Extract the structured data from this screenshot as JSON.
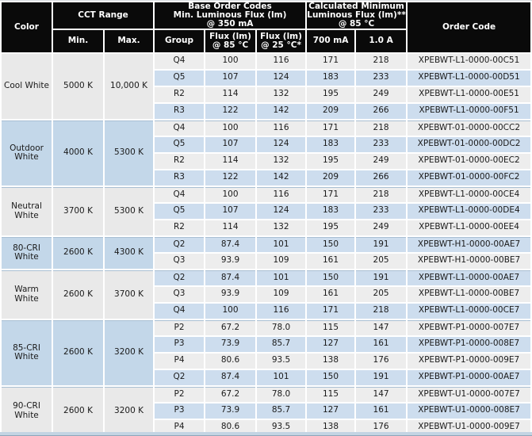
{
  "theme": {
    "header_bg": "#0a0a0a",
    "header_text": "#ffffff",
    "row_light": "#ededed",
    "row_blue": "#cdddee",
    "section_gray": "#e9e9e9",
    "section_blue": "#c3d7e9",
    "divider": "#a9bfd3",
    "body_text": "#1a1a1a",
    "bottom_strip": "#c3d4e3"
  },
  "table": {
    "header": {
      "color": "Color",
      "cct_range": "CCT Range",
      "base_order_codes": "Base Order Codes\nMin. Luminous Flux (lm)\n@ 350 mA",
      "calculated_min": "Calculated Minimum\nLuminous Flux (lm)**\n@ 85 °C",
      "order_code": "Order Code",
      "min": "Min.",
      "max": "Max.",
      "group": "Group",
      "flux_85": "Flux (lm)\n@ 85 °C",
      "flux_25": "Flux (lm)\n@ 25 °C*",
      "ma_700": "700 mA",
      "a_1_0": "1.0 A"
    },
    "sections": [
      {
        "color": "Cool White",
        "cct_min": "5000 K",
        "cct_max": "10,000 K",
        "tint": "gray",
        "rows": [
          {
            "group": "Q4",
            "flux85": "100",
            "flux25": "116",
            "ma700": "171",
            "a10": "218",
            "code": "XPEBWT-L1-0000-00C51"
          },
          {
            "group": "Q5",
            "flux85": "107",
            "flux25": "124",
            "ma700": "183",
            "a10": "233",
            "code": "XPEBWT-L1-0000-00D51"
          },
          {
            "group": "R2",
            "flux85": "114",
            "flux25": "132",
            "ma700": "195",
            "a10": "249",
            "code": "XPEBWT-L1-0000-00E51"
          },
          {
            "group": "R3",
            "flux85": "122",
            "flux25": "142",
            "ma700": "209",
            "a10": "266",
            "code": "XPEBWT-L1-0000-00F51"
          }
        ]
      },
      {
        "color": "Outdoor White",
        "cct_min": "4000 K",
        "cct_max": "5300 K",
        "tint": "blue",
        "rows": [
          {
            "group": "Q4",
            "flux85": "100",
            "flux25": "116",
            "ma700": "171",
            "a10": "218",
            "code": "XPEBWT-01-0000-00CC2"
          },
          {
            "group": "Q5",
            "flux85": "107",
            "flux25": "124",
            "ma700": "183",
            "a10": "233",
            "code": "XPEBWT-01-0000-00DC2"
          },
          {
            "group": "R2",
            "flux85": "114",
            "flux25": "132",
            "ma700": "195",
            "a10": "249",
            "code": "XPEBWT-01-0000-00EC2"
          },
          {
            "group": "R3",
            "flux85": "122",
            "flux25": "142",
            "ma700": "209",
            "a10": "266",
            "code": "XPEBWT-01-0000-00FC2"
          }
        ]
      },
      {
        "color": "Neutral White",
        "cct_min": "3700 K",
        "cct_max": "5300 K",
        "tint": "gray",
        "rows": [
          {
            "group": "Q4",
            "flux85": "100",
            "flux25": "116",
            "ma700": "171",
            "a10": "218",
            "code": "XPEBWT-L1-0000-00CE4"
          },
          {
            "group": "Q5",
            "flux85": "107",
            "flux25": "124",
            "ma700": "183",
            "a10": "233",
            "code": "XPEBWT-L1-0000-00DE4"
          },
          {
            "group": "R2",
            "flux85": "114",
            "flux25": "132",
            "ma700": "195",
            "a10": "249",
            "code": "XPEBWT-L1-0000-00EE4"
          }
        ]
      },
      {
        "color": "80-CRI White",
        "cct_min": "2600 K",
        "cct_max": "4300 K",
        "tint": "blue",
        "rows": [
          {
            "group": "Q2",
            "flux85": "87.4",
            "flux25": "101",
            "ma700": "150",
            "a10": "191",
            "code": "XPEBWT-H1-0000-00AE7"
          },
          {
            "group": "Q3",
            "flux85": "93.9",
            "flux25": "109",
            "ma700": "161",
            "a10": "205",
            "code": "XPEBWT-H1-0000-00BE7"
          }
        ]
      },
      {
        "color": "Warm White",
        "cct_min": "2600 K",
        "cct_max": "3700 K",
        "tint": "gray",
        "rows": [
          {
            "group": "Q2",
            "flux85": "87.4",
            "flux25": "101",
            "ma700": "150",
            "a10": "191",
            "code": "XPEBWT-L1-0000-00AE7"
          },
          {
            "group": "Q3",
            "flux85": "93.9",
            "flux25": "109",
            "ma700": "161",
            "a10": "205",
            "code": "XPEBWT-L1-0000-00BE7"
          },
          {
            "group": "Q4",
            "flux85": "100",
            "flux25": "116",
            "ma700": "171",
            "a10": "218",
            "code": "XPEBWT-L1-0000-00CE7"
          }
        ]
      },
      {
        "color": "85-CRI White",
        "cct_min": "2600 K",
        "cct_max": "3200 K",
        "tint": "blue",
        "rows": [
          {
            "group": "P2",
            "flux85": "67.2",
            "flux25": "78.0",
            "ma700": "115",
            "a10": "147",
            "code": "XPEBWT-P1-0000-007E7"
          },
          {
            "group": "P3",
            "flux85": "73.9",
            "flux25": "85.7",
            "ma700": "127",
            "a10": "161",
            "code": "XPEBWT-P1-0000-008E7"
          },
          {
            "group": "P4",
            "flux85": "80.6",
            "flux25": "93.5",
            "ma700": "138",
            "a10": "176",
            "code": "XPEBWT-P1-0000-009E7"
          },
          {
            "group": "Q2",
            "flux85": "87.4",
            "flux25": "101",
            "ma700": "150",
            "a10": "191",
            "code": "XPEBWT-P1-0000-00AE7"
          }
        ]
      },
      {
        "color": "90-CRI White",
        "cct_min": "2600 K",
        "cct_max": "3200 K",
        "tint": "gray",
        "rows": [
          {
            "group": "P2",
            "flux85": "67.2",
            "flux25": "78.0",
            "ma700": "115",
            "a10": "147",
            "code": "XPEBWT-U1-0000-007E7"
          },
          {
            "group": "P3",
            "flux85": "73.9",
            "flux25": "85.7",
            "ma700": "127",
            "a10": "161",
            "code": "XPEBWT-U1-0000-008E7"
          },
          {
            "group": "P4",
            "flux85": "80.6",
            "flux25": "93.5",
            "ma700": "138",
            "a10": "176",
            "code": "XPEBWT-U1-0000-009E7"
          }
        ]
      }
    ]
  }
}
